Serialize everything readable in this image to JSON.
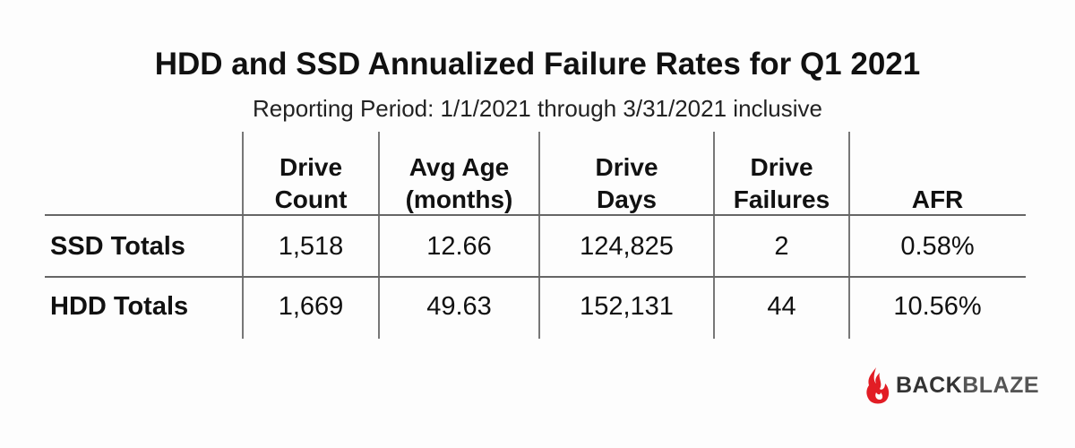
{
  "title": "HDD and SSD Annualized Failure Rates for Q1 2021",
  "subtitle": "Reporting Period: 1/1/2021 through 3/31/2021 inclusive",
  "chart_data": {
    "type": "table",
    "columns": [
      {
        "line1": "",
        "line2": ""
      },
      {
        "line1": "Drive",
        "line2": "Count"
      },
      {
        "line1": "Avg Age",
        "line2": "(months)"
      },
      {
        "line1": "Drive",
        "line2": "Days"
      },
      {
        "line1": "Drive",
        "line2": "Failures"
      },
      {
        "line1": "",
        "line2": "AFR"
      }
    ],
    "rows": [
      {
        "label": "SSD Totals",
        "values": [
          "1,518",
          "12.66",
          "124,825",
          "2",
          "0.58%"
        ]
      },
      {
        "label": "HDD Totals",
        "values": [
          "1,669",
          "49.63",
          "152,131",
          "44",
          "10.56%"
        ]
      }
    ]
  },
  "logo": {
    "text_part1": "BACK",
    "text_part2": "BLAZE",
    "icon": "flame-icon",
    "color": "#e21d25"
  }
}
